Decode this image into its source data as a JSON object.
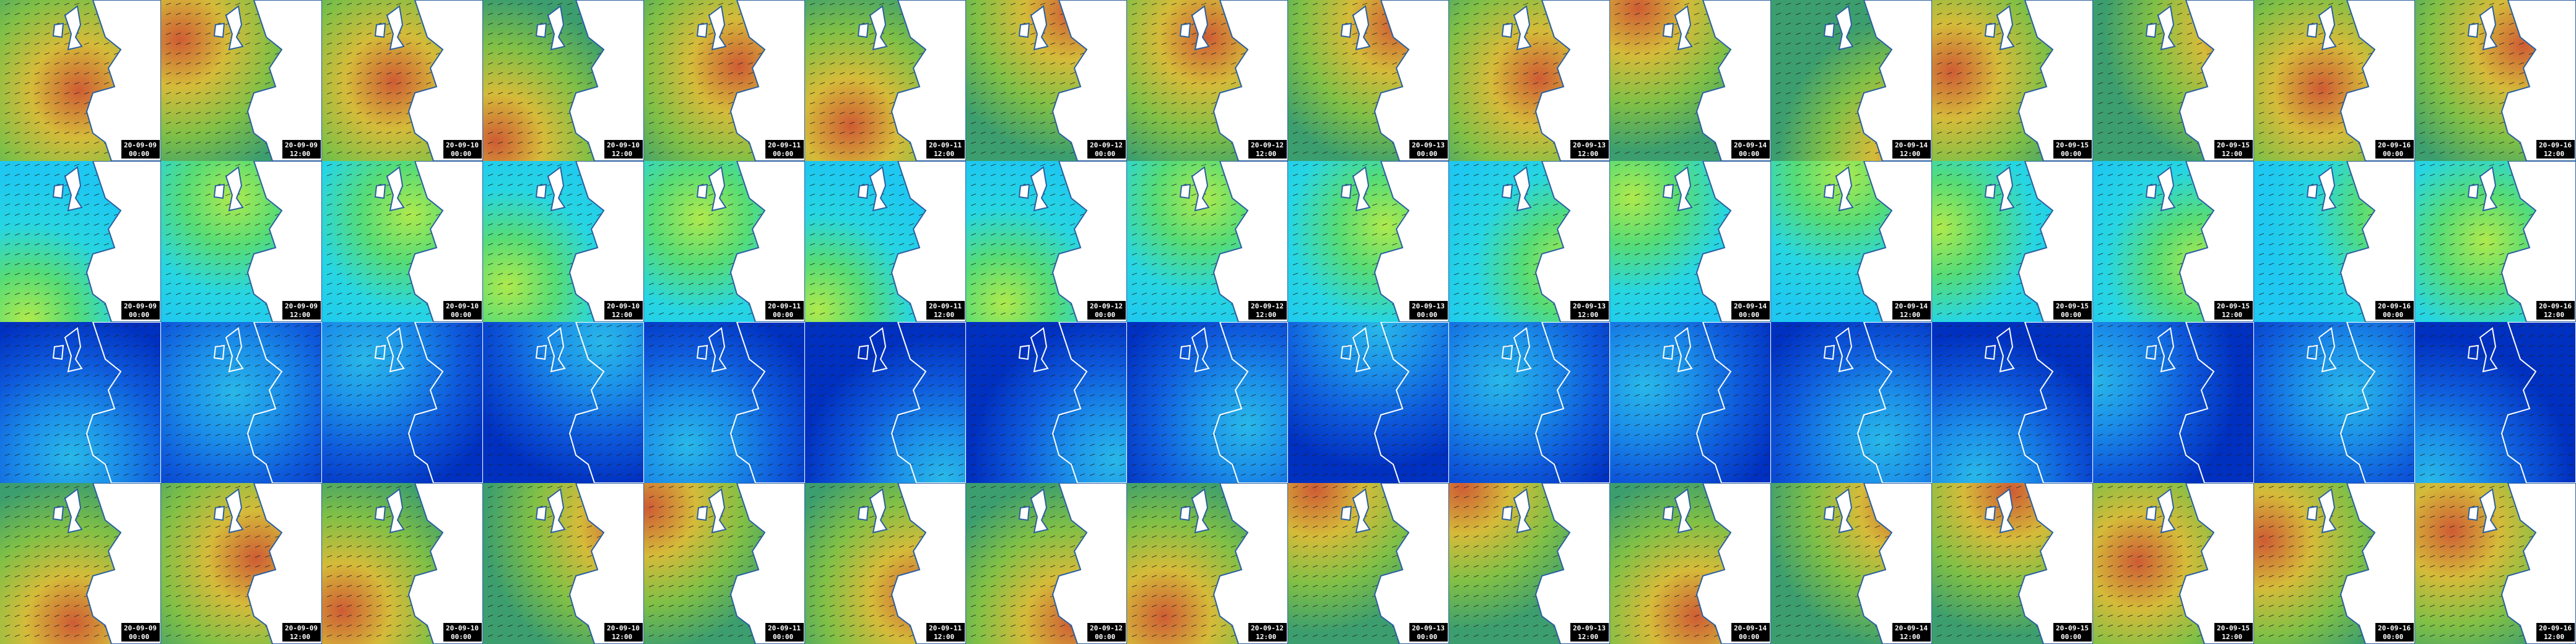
{
  "labeled_rows": [
    {
      "labels": [
        [
          "20-09-09",
          "00:00"
        ],
        [
          "20-09-09",
          "12:00"
        ],
        [
          "20-09-10",
          "00:00"
        ],
        [
          "20-09-10",
          "12:00"
        ],
        [
          "20-09-11",
          "00:00"
        ],
        [
          "20-09-11",
          "12:00"
        ],
        [
          "20-09-12",
          "00:00"
        ],
        [
          "20-09-12",
          "12:00"
        ],
        [
          "20-09-13",
          "00:00"
        ],
        [
          "20-09-13",
          "12:00"
        ],
        [
          "20-09-14",
          "00:00"
        ],
        [
          "20-09-14",
          "12:00"
        ],
        [
          "20-09-15",
          "00:00"
        ],
        [
          "20-09-15",
          "12:00"
        ],
        [
          "20-09-16",
          "00:00"
        ],
        [
          "20-09-16",
          "12:00"
        ]
      ]
    },
    {
      "labels": [
        [
          "20-09-09",
          "00:00"
        ],
        [
          "20-09-09",
          "12:00"
        ],
        [
          "20-09-10",
          "00:00"
        ],
        [
          "20-09-10",
          "12:00"
        ],
        [
          "20-09-11",
          "00:00"
        ],
        [
          "20-09-11",
          "12:00"
        ],
        [
          "20-09-12",
          "00:00"
        ],
        [
          "20-09-12",
          "12:00"
        ],
        [
          "20-09-13",
          "00:00"
        ],
        [
          "20-09-13",
          "12:00"
        ],
        [
          "20-09-14",
          "00:00"
        ],
        [
          "20-09-14",
          "12:00"
        ],
        [
          "20-09-15",
          "00:00"
        ],
        [
          "20-09-15",
          "12:00"
        ],
        [
          "20-09-16",
          "00:00"
        ],
        [
          "20-09-16",
          "12:00"
        ]
      ]
    },
    {
      "labels": [
        [
          "20-09-09",
          "00:00"
        ],
        [
          "20-09-09",
          "12:00"
        ],
        [
          "20-09-10",
          "00:00"
        ],
        [
          "20-09-10",
          "12:00"
        ],
        [
          "20-09-11",
          "00:00"
        ],
        [
          "20-09-11",
          "12:00"
        ],
        [
          "20-09-12",
          "00:00"
        ],
        [
          "20-09-12",
          "12:00"
        ],
        [
          "20-09-13",
          "00:00"
        ],
        [
          "20-09-13",
          "12:00"
        ],
        [
          "20-09-14",
          "00:00"
        ],
        [
          "20-09-14",
          "12:00"
        ],
        [
          "20-09-15",
          "00:00"
        ],
        [
          "20-09-15",
          "12:00"
        ],
        [
          "20-09-16",
          "00:00"
        ],
        [
          "20-09-16",
          "12:00"
        ]
      ]
    }
  ]
}
